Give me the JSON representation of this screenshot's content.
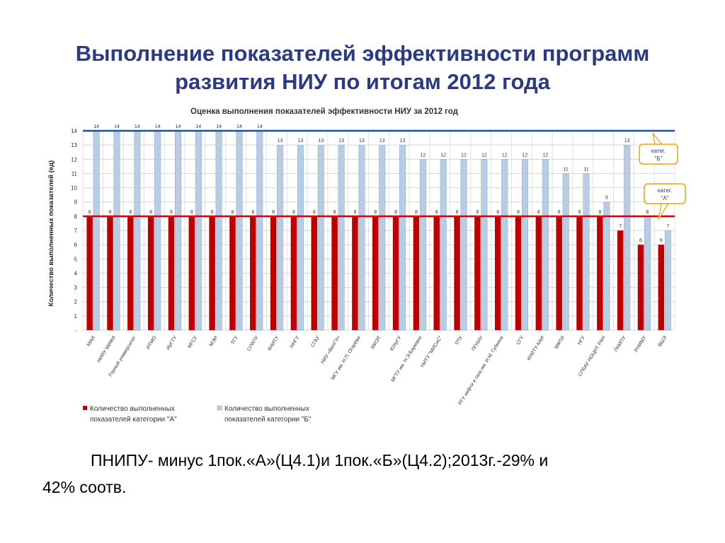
{
  "slide": {
    "title_line1": "Выполнение показателей эффективности программ",
    "title_line2": "развития НИУ по итогам 2012 года",
    "note_line1": "ПНИПУ- минус 1пок.«А»(Ц4.1)и 1пок.«Б»(Ц4.2);2013г.-29% и",
    "note_line2": "42% соотв."
  },
  "chart_data": {
    "type": "bar",
    "title": "Оценка выполнения показателей эффективности НИУ за 2012 год",
    "xlabel": "",
    "ylabel": "Количество выполненных показателей (ед)",
    "ylim": [
      0,
      14
    ],
    "yticks": [
      "-",
      "1",
      "2",
      "3",
      "4",
      "5",
      "6",
      "7",
      "8",
      "9",
      "10",
      "11",
      "12",
      "13",
      "14"
    ],
    "grid": true,
    "legend_position": "bottom-left",
    "categories": [
      "МАИ",
      "НИЯУ МИФИ",
      "Горный университет",
      "ИТМО",
      "ИрГТУ",
      "МГСУ",
      "МЭИ",
      "ТГУ",
      "СПбПУ",
      "КНИТУ",
      "ННГУ",
      "СГАУ",
      "НИУ «БелГУ»",
      "МГУ им. Н.П. Огарёва",
      "МИЭТ",
      "ЮУрГУ",
      "МГТУ им. Н.Э.Баумана",
      "НИТУ \"МИСиС\"",
      "ТПУ",
      "ПГНИУ",
      "РГУ нефти и газа им. И.М. Губкина",
      "СГУ",
      "КНИТУ-КАИ",
      "МФТИ",
      "НГУ",
      "СПбАУ НОЦНТ РАН",
      "ПНИПУ",
      "РНИМУ",
      "ВШЭ"
    ],
    "series": [
      {
        "name": "Количество выполненных показателей категории \"А\"",
        "color": "#c00000",
        "values": [
          8,
          8,
          8,
          8,
          8,
          8,
          8,
          8,
          8,
          8,
          8,
          8,
          8,
          8,
          8,
          8,
          8,
          8,
          8,
          8,
          8,
          8,
          8,
          8,
          8,
          8,
          7,
          6,
          6
        ]
      },
      {
        "name": "Количество выполненных показателей категории \"Б\"",
        "color": "#b8cce4",
        "values": [
          14,
          14,
          14,
          14,
          14,
          14,
          14,
          14,
          14,
          13,
          13,
          13,
          13,
          13,
          13,
          13,
          12,
          12,
          12,
          12,
          12,
          12,
          12,
          11,
          11,
          9,
          13,
          8,
          7
        ]
      }
    ],
    "reference_lines": [
      {
        "value": 14,
        "color": "#1f4e9a"
      },
      {
        "value": 8,
        "color": "#e00000"
      }
    ],
    "annotations": [
      {
        "text": "катег. \"Б\"",
        "target": 14
      },
      {
        "text": "катег. \"А\"",
        "target": 8
      }
    ]
  }
}
